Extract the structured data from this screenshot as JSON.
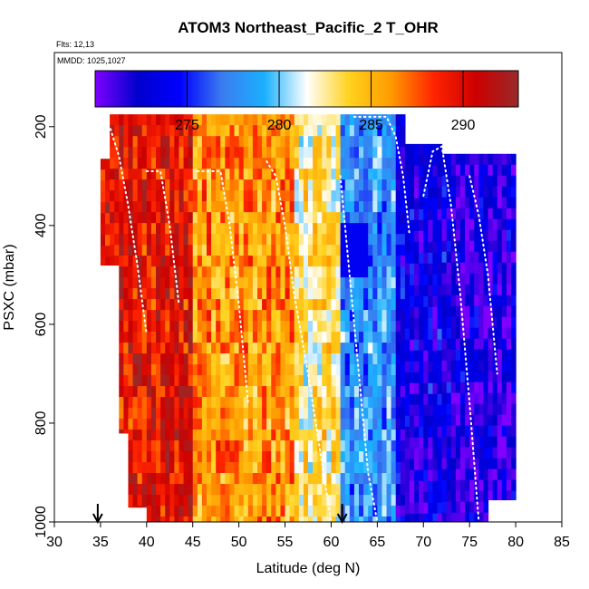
{
  "chart_data": {
    "type": "heatmap",
    "title": "ATOM3 Northeast_Pacific_2 T_OHR",
    "flights_label": "Flts: 12,13",
    "dates_label": "MMDD: 1025,1027",
    "xlabel": "Latitude (deg N)",
    "ylabel": "PSXC (mbar)",
    "xlim": [
      30,
      85
    ],
    "ylim": [
      1000,
      50
    ],
    "y_reversed": true,
    "x_ticks": [
      30,
      35,
      40,
      45,
      50,
      55,
      60,
      65,
      70,
      75,
      80,
      85
    ],
    "y_ticks": [
      200,
      400,
      600,
      800,
      1000
    ],
    "colorbar": {
      "min": 270,
      "max": 293,
      "ticks": [
        275,
        280,
        285,
        290
      ],
      "colors": [
        "#7f00ff",
        "#0000cc",
        "#0000ff",
        "#3b7cf0",
        "#1ab0ff",
        "#ffffff",
        "#ffd21e",
        "#ff9a00",
        "#ff2400",
        "#cc0000",
        "#992a2a"
      ]
    },
    "arrow_markers": [
      34.7,
      61.2
    ],
    "data_extent": {
      "lat": [
        35,
        80
      ],
      "pressure": [
        175,
        1000
      ]
    },
    "zones": [
      {
        "lat": [
          35,
          45
        ],
        "value": 290
      },
      {
        "lat": [
          45,
          56
        ],
        "value": 286
      },
      {
        "lat": [
          56,
          61
        ],
        "value": 283
      },
      {
        "lat": [
          61,
          67
        ],
        "value": 278
      },
      {
        "lat": [
          67,
          73
        ],
        "value": 273
      },
      {
        "lat": [
          73,
          80
        ],
        "value": 272
      }
    ],
    "flight_tracks": [
      {
        "points": [
          [
            35.2,
            197
          ],
          [
            36,
            200
          ],
          [
            37,
            260
          ],
          [
            38,
            360
          ],
          [
            39,
            480
          ],
          [
            40,
            620
          ]
        ]
      },
      {
        "points": [
          [
            40,
            290
          ],
          [
            41.5,
            290
          ],
          [
            42.5,
            400
          ],
          [
            43.5,
            560
          ]
        ]
      },
      {
        "points": [
          [
            45.5,
            290
          ],
          [
            48,
            290
          ],
          [
            49,
            400
          ],
          [
            50,
            560
          ],
          [
            51,
            760
          ]
        ]
      },
      {
        "points": [
          [
            53,
            270
          ],
          [
            54,
            300
          ],
          [
            55,
            400
          ],
          [
            56,
            540
          ],
          [
            57.5,
            700
          ],
          [
            59,
            880
          ],
          [
            60,
            1000
          ]
        ]
      },
      {
        "points": [
          [
            61,
            300
          ],
          [
            62,
            500
          ],
          [
            63,
            700
          ],
          [
            64,
            900
          ],
          [
            65,
            1000
          ]
        ]
      },
      {
        "points": [
          [
            62.5,
            180
          ],
          [
            66,
            180
          ],
          [
            67,
            220
          ],
          [
            67.8,
            300
          ],
          [
            68.5,
            420
          ]
        ]
      },
      {
        "points": [
          [
            70,
            340
          ],
          [
            71,
            250
          ],
          [
            72,
            240
          ],
          [
            73,
            360
          ],
          [
            74,
            540
          ],
          [
            75,
            760
          ],
          [
            76,
            1000
          ]
        ]
      },
      {
        "points": [
          [
            75,
            300
          ],
          [
            76,
            380
          ],
          [
            77,
            500
          ],
          [
            78,
            700
          ]
        ]
      }
    ]
  }
}
